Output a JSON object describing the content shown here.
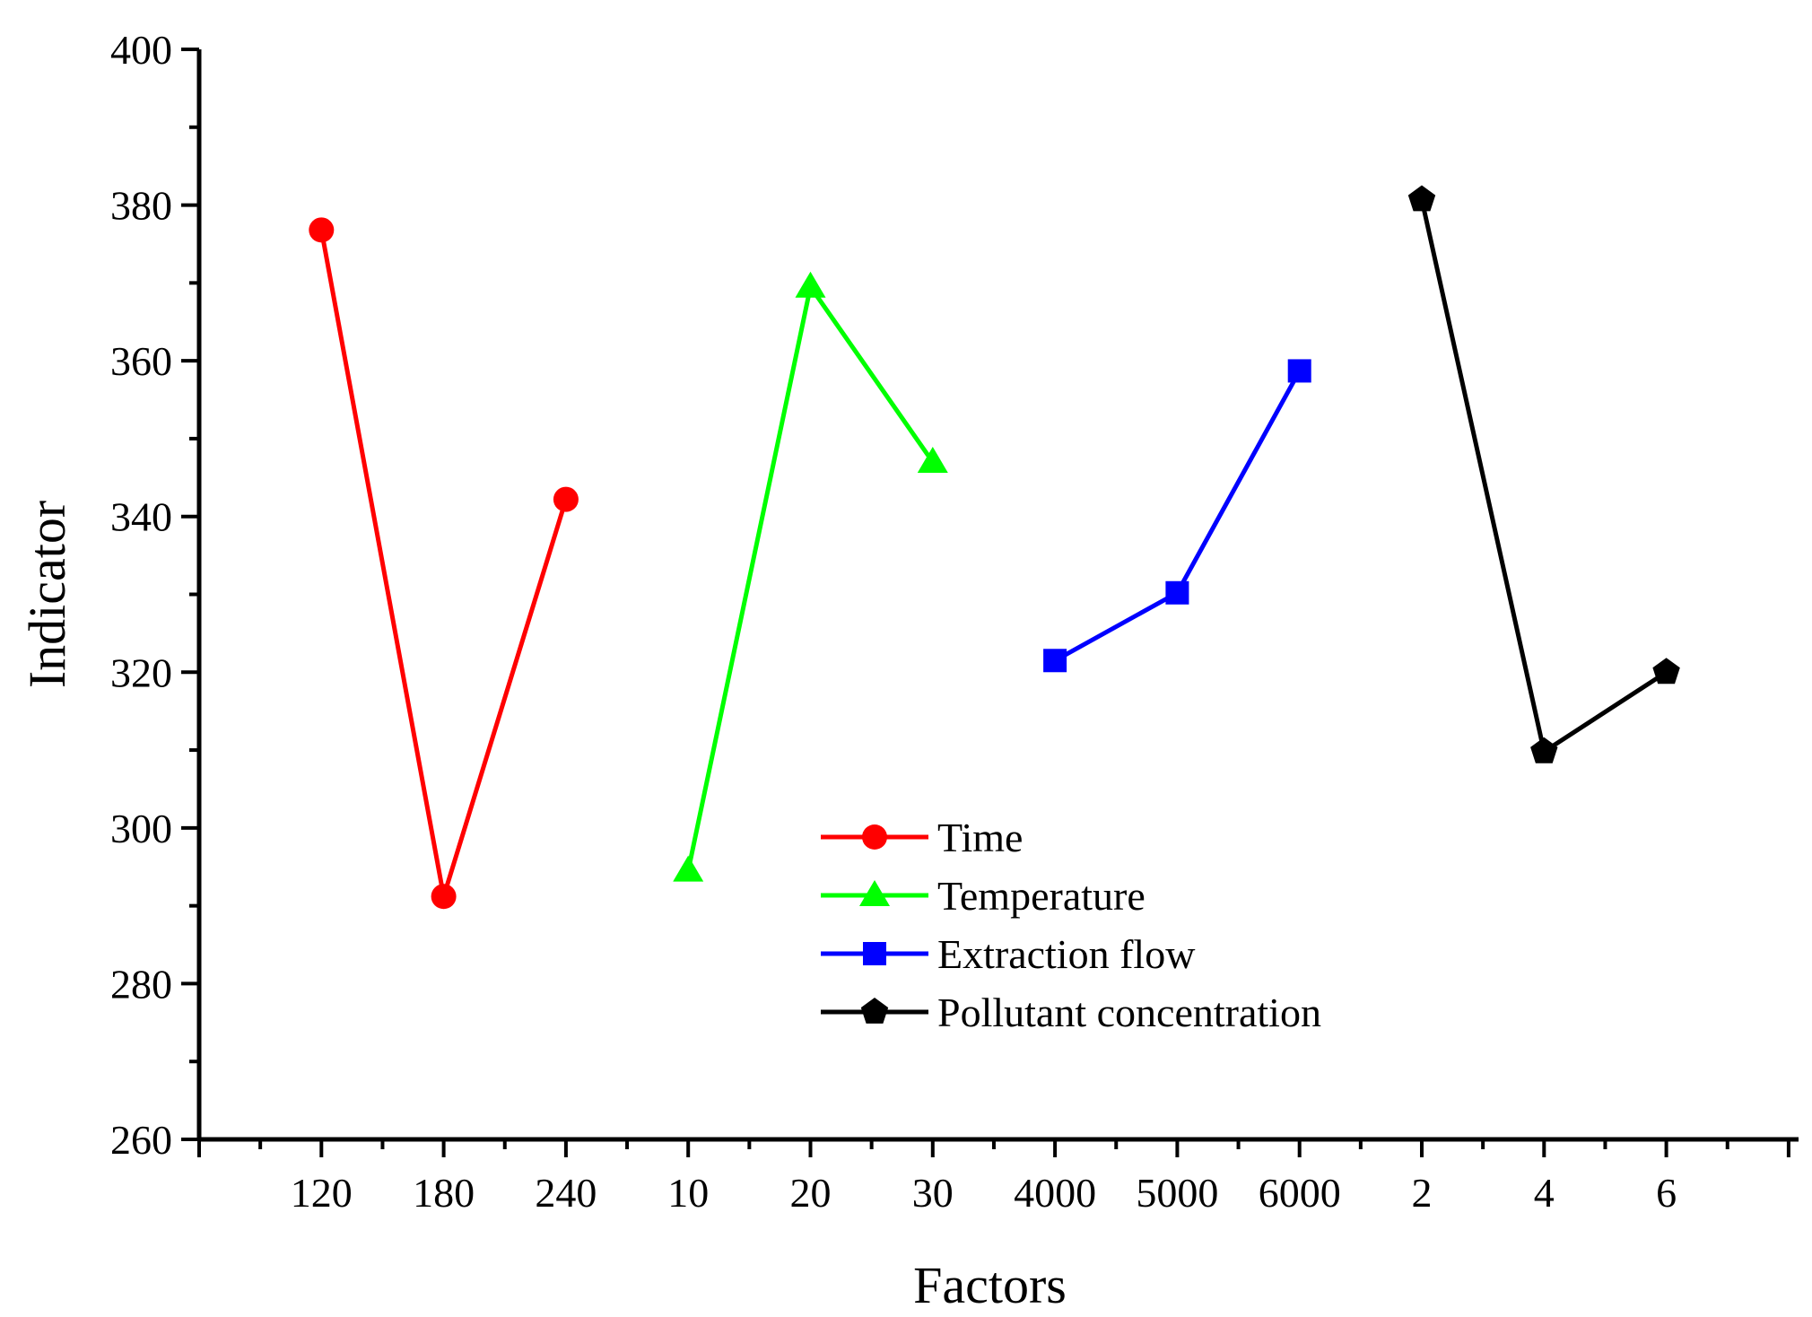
{
  "chart_data": {
    "type": "line",
    "xlabel": "Factors",
    "ylabel": "Indicator",
    "ylim": [
      260,
      400
    ],
    "yticks": [
      260,
      280,
      300,
      320,
      340,
      360,
      380,
      400
    ],
    "categories": [
      "120",
      "180",
      "240",
      "10",
      "20",
      "30",
      "4000",
      "5000",
      "6000",
      "2",
      "4",
      "6"
    ],
    "grid": false,
    "legend_position": "bottom-center",
    "series": [
      {
        "name": "Time",
        "color": "#ff0000",
        "marker": "circle",
        "x": [
          "120",
          "180",
          "240"
        ],
        "values": [
          376.8,
          291.2,
          342.2
        ]
      },
      {
        "name": "Temperature",
        "color": "#00ff00",
        "marker": "triangle",
        "x": [
          "10",
          "20",
          "30"
        ],
        "values": [
          294.5,
          369.5,
          347.0
        ]
      },
      {
        "name": "Extraction flow",
        "color": "#0000ff",
        "marker": "square",
        "x": [
          "4000",
          "5000",
          "6000"
        ],
        "values": [
          321.5,
          330.2,
          358.7
        ]
      },
      {
        "name": "Pollutant concentration",
        "color": "#000000",
        "marker": "pentagon",
        "x": [
          "2",
          "4",
          "6"
        ],
        "values": [
          380.7,
          309.8,
          320.0
        ]
      }
    ]
  }
}
